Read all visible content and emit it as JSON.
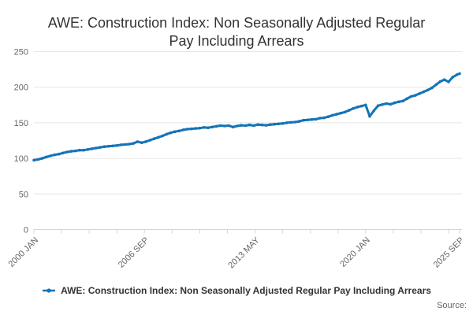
{
  "header": {
    "title_line1": "AWE: Construction Index: Non Seasonally Adjusted Regular",
    "title_line2": "Pay Including Arrears"
  },
  "legend": {
    "label": "AWE: Construction Index: Non Seasonally Adjusted Regular Pay Including Arrears",
    "marker": "line-with-dot"
  },
  "source_label": "Source:",
  "colors": {
    "line": "#1574b6",
    "grid": "#e6e6e6",
    "axis": "#ccd6eb",
    "axis_label": "#666666",
    "title_text": "#333333",
    "legend_text": "#333333",
    "source_text": "#666666",
    "background": "#ffffff"
  },
  "chart_data": {
    "type": "line",
    "title": "AWE: Construction Index: Non Seasonally Adjusted Regular Pay Including Arrears",
    "xlabel": "",
    "ylabel": "",
    "ylim": [
      0,
      250
    ],
    "yticks": [
      0,
      50,
      100,
      150,
      200,
      250
    ],
    "grid": "horizontal",
    "legend_position": "bottom",
    "x_range_months": [
      0,
      308
    ],
    "x_tick_months": [
      0,
      80,
      160,
      240,
      308
    ],
    "x_tick_labels": [
      "2000 JAN",
      "2006 SEP",
      "2013 MAY",
      "2020 JAN",
      "2025 SEP"
    ],
    "x_minor_ticks": [
      0,
      20,
      40,
      60,
      80,
      100,
      120,
      140,
      160,
      180,
      200,
      220,
      240,
      260,
      280,
      300,
      308
    ],
    "series": [
      {
        "name": "AWE: Construction Index: Non Seasonally Adjusted Regular Pay Including Arrears",
        "x_unit": "months since 2000 JAN",
        "months": [
          0,
          3,
          6,
          9,
          12,
          15,
          18,
          21,
          24,
          27,
          30,
          33,
          36,
          39,
          42,
          45,
          48,
          51,
          54,
          57,
          60,
          63,
          66,
          69,
          72,
          75,
          78,
          81,
          84,
          87,
          90,
          93,
          96,
          99,
          102,
          105,
          108,
          111,
          114,
          117,
          120,
          123,
          126,
          129,
          132,
          135,
          138,
          141,
          144,
          147,
          150,
          153,
          156,
          159,
          162,
          165,
          168,
          171,
          174,
          177,
          180,
          183,
          186,
          189,
          192,
          195,
          198,
          201,
          204,
          207,
          210,
          213,
          216,
          219,
          222,
          225,
          228,
          231,
          234,
          237,
          240,
          243,
          246,
          249,
          252,
          255,
          258,
          261,
          264,
          267,
          270,
          273,
          276,
          279,
          282,
          285,
          288,
          291,
          294,
          297,
          300,
          303,
          306,
          308
        ],
        "values": [
          97.5,
          98.5,
          100,
          102,
          103.5,
          105,
          106,
          107.5,
          109,
          110,
          110.5,
          111.5,
          111.5,
          112.5,
          113.5,
          114.5,
          115.5,
          116.5,
          117,
          117.5,
          118,
          119,
          119.5,
          120,
          121,
          123.5,
          122,
          123.5,
          125.5,
          127.5,
          129.5,
          131.5,
          134,
          136,
          137.5,
          138.5,
          140,
          141,
          141.5,
          142,
          142.5,
          143.5,
          143,
          144,
          145,
          146,
          145.5,
          146,
          144,
          145.5,
          146.5,
          146,
          147,
          146,
          147.5,
          147,
          146.5,
          147.5,
          148,
          148.5,
          149,
          150,
          150.5,
          151,
          152,
          153.5,
          154,
          154.5,
          155,
          156.5,
          157,
          158.5,
          160.5,
          162,
          163.5,
          165,
          167.5,
          170,
          172,
          173.5,
          175,
          159,
          167,
          174,
          175.5,
          177,
          176,
          178,
          179.5,
          180.5,
          184,
          187,
          188.5,
          191,
          193.5,
          196,
          199,
          203.5,
          208,
          210.5,
          207.5,
          214,
          217.5,
          219
        ]
      }
    ]
  }
}
